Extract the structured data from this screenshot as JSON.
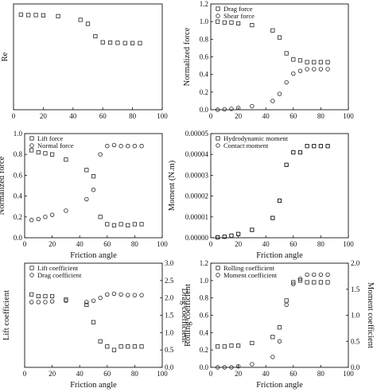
{
  "figure": {
    "colors": {
      "marker": "#222222",
      "axis": "#111111",
      "background": "#ffffff"
    }
  },
  "chart_data": [
    {
      "type": "scatter",
      "title": "",
      "xlabel": "",
      "ylabel": "Re",
      "xlim": [
        0,
        100
      ],
      "ylim": [
        0,
        400
      ],
      "xticks": [
        "0",
        "20",
        "40",
        "60",
        "80",
        "100"
      ],
      "yticks": [],
      "grid": false,
      "legend": null,
      "series": [
        {
          "marker": "square",
          "axis": "left",
          "x": [
            5,
            10,
            15,
            20,
            30,
            45,
            50,
            55,
            60,
            65,
            70,
            75,
            80,
            85
          ],
          "y": [
            360,
            358,
            358,
            357,
            354,
            340,
            325,
            278,
            255,
            254,
            253,
            252,
            252,
            252
          ]
        }
      ]
    },
    {
      "type": "scatter",
      "title": "",
      "xlabel": "",
      "ylabel": "Normalized force",
      "xlim": [
        0,
        100
      ],
      "ylim": [
        0,
        1.2
      ],
      "xticks": [
        "0",
        "20",
        "40",
        "60",
        "80",
        "100"
      ],
      "yticks": [
        "0.0",
        "0.2",
        "0.4",
        "0.6",
        "0.8",
        "1.0",
        "1.2"
      ],
      "grid": false,
      "legend": "top-left",
      "series": [
        {
          "name": "Drag force",
          "marker": "square",
          "axis": "left",
          "x": [
            5,
            10,
            15,
            20,
            30,
            45,
            50,
            55,
            60,
            65,
            70,
            75,
            80,
            85
          ],
          "y": [
            1.0,
            0.99,
            0.99,
            0.98,
            0.96,
            0.9,
            0.82,
            0.64,
            0.57,
            0.56,
            0.54,
            0.54,
            0.54,
            0.54
          ]
        },
        {
          "name": "Shear force",
          "marker": "circle",
          "axis": "left",
          "x": [
            5,
            10,
            15,
            20,
            30,
            45,
            50,
            55,
            60,
            65,
            70,
            75,
            80,
            85
          ],
          "y": [
            0.0,
            0.005,
            0.01,
            0.02,
            0.04,
            0.1,
            0.18,
            0.31,
            0.41,
            0.44,
            0.46,
            0.46,
            0.46,
            0.46
          ]
        }
      ]
    },
    {
      "type": "scatter",
      "title": "",
      "xlabel": "Friction angle",
      "ylabel": "Normalized force",
      "xlim": [
        0,
        100
      ],
      "ylim": [
        0.0,
        1.0
      ],
      "xticks": [
        "0",
        "20",
        "40",
        "60",
        "80",
        "100"
      ],
      "yticks": [
        "0.0",
        "0.2",
        "0.4",
        "0.6",
        "0.8",
        "1.0"
      ],
      "grid": false,
      "legend": "top-left",
      "series": [
        {
          "name": "Lift force",
          "marker": "square",
          "axis": "left",
          "x": [
            5,
            10,
            15,
            20,
            30,
            45,
            50,
            55,
            60,
            65,
            70,
            75,
            80,
            85
          ],
          "y": [
            0.84,
            0.82,
            0.81,
            0.8,
            0.75,
            0.65,
            0.59,
            0.2,
            0.13,
            0.12,
            0.13,
            0.12,
            0.13,
            0.13
          ]
        },
        {
          "name": "Normal force",
          "marker": "circle",
          "axis": "left",
          "x": [
            5,
            10,
            15,
            20,
            30,
            45,
            50,
            55,
            60,
            65,
            70,
            75,
            80,
            85
          ],
          "y": [
            0.17,
            0.18,
            0.2,
            0.22,
            0.26,
            0.37,
            0.46,
            0.8,
            0.88,
            0.89,
            0.88,
            0.88,
            0.88,
            0.88
          ]
        }
      ]
    },
    {
      "type": "scatter",
      "title": "",
      "xlabel": "Friction angle",
      "ylabel": "Moment (N.m)",
      "xlim": [
        0,
        100
      ],
      "ylim": [
        0,
        5e-05
      ],
      "xticks": [
        "0",
        "20",
        "40",
        "60",
        "80",
        "100"
      ],
      "yticks": [
        "0.00000",
        "0.00001",
        "0.00002",
        "0.00003",
        "0.00004",
        "0.00005"
      ],
      "grid": false,
      "legend": "top-left",
      "series": [
        {
          "name": "Hydrodynamic moment",
          "marker": "square",
          "axis": "left",
          "x": [
            5,
            10,
            15,
            20,
            30,
            45,
            50,
            55,
            60,
            65,
            70,
            75,
            80,
            85
          ],
          "y": [
            2e-07,
            5e-07,
            1e-06,
            1.8e-06,
            3.8e-06,
            9.5e-06,
            1.78e-05,
            3.5e-05,
            4.1e-05,
            4.1e-05,
            4.4e-05,
            4.4e-05,
            4.4e-05,
            4.4e-05
          ]
        },
        {
          "name": "Contact moment",
          "marker": "circle",
          "axis": "left",
          "x": [
            5,
            10,
            15,
            20,
            30,
            45,
            50,
            55,
            60,
            65,
            70,
            75,
            80,
            85
          ],
          "y": [
            2e-07,
            5e-07,
            1e-06,
            1.8e-06,
            3.8e-06,
            9.5e-06,
            1.78e-05,
            3.5e-05,
            4.1e-05,
            4.1e-05,
            4.4e-05,
            4.4e-05,
            4.4e-05,
            4.4e-05
          ]
        }
      ]
    },
    {
      "type": "scatter",
      "title": "",
      "xlabel": "Friction angle",
      "ylabel": "Lift coefficient",
      "ylabel_right": "Drag coefficient",
      "xlim": [
        0,
        100
      ],
      "ylim": [
        0,
        0.6
      ],
      "ylim_right": [
        0,
        3.0
      ],
      "xticks": [
        "0",
        "20",
        "40",
        "60",
        "80",
        "100"
      ],
      "yticks": [],
      "yticks_right": [
        "0.0",
        "0.5",
        "1.0",
        "1.5",
        "2.0",
        "2.5",
        "3.0"
      ],
      "grid": false,
      "legend": "top-left",
      "series": [
        {
          "name": "Lift coefficient",
          "marker": "square",
          "axis": "left",
          "x": [
            5,
            10,
            15,
            20,
            30,
            45,
            50,
            55,
            60,
            65,
            70,
            75,
            80,
            85
          ],
          "y": [
            0.42,
            0.41,
            0.41,
            0.41,
            0.39,
            0.36,
            0.26,
            0.15,
            0.12,
            0.1,
            0.12,
            0.12,
            0.12,
            0.12
          ]
        },
        {
          "name": "Drag coefficient",
          "marker": "circle",
          "axis": "right",
          "x": [
            5,
            10,
            15,
            20,
            30,
            45,
            50,
            55,
            60,
            65,
            70,
            75,
            80,
            85
          ],
          "y": [
            1.88,
            1.88,
            1.88,
            1.9,
            1.92,
            1.88,
            1.92,
            2.0,
            2.1,
            2.12,
            2.1,
            2.08,
            2.08,
            2.08
          ]
        }
      ]
    },
    {
      "type": "scatter",
      "title": "",
      "xlabel": "Friction angle",
      "ylabel": "Rolling coefficient",
      "ylabel_right": "Moment coefficient",
      "xlim": [
        0,
        100
      ],
      "ylim": [
        0,
        1.2
      ],
      "ylim_right": [
        0,
        2.0
      ],
      "xticks": [
        "0",
        "20",
        "40",
        "60",
        "80",
        "100"
      ],
      "yticks": [
        "0.0",
        "0.2",
        "0.4",
        "0.6",
        "0.8",
        "1.0",
        "1.2"
      ],
      "yticks_right": [
        "0.0",
        "0.5",
        "1.0",
        "1.5",
        "2.0"
      ],
      "grid": false,
      "legend": "top-left",
      "series": [
        {
          "name": "Rolling coefficient",
          "marker": "square",
          "axis": "left",
          "x": [
            5,
            10,
            15,
            20,
            30,
            45,
            50,
            55,
            60,
            65,
            70,
            75,
            80,
            85
          ],
          "y": [
            0.24,
            0.24,
            0.25,
            0.25,
            0.28,
            0.35,
            0.46,
            0.77,
            0.98,
            1.0,
            0.98,
            0.98,
            0.98,
            0.98
          ]
        },
        {
          "name": "Moment coefficient",
          "marker": "circle",
          "axis": "right",
          "x": [
            5,
            10,
            15,
            20,
            30,
            45,
            50,
            55,
            60,
            65,
            70,
            75,
            80,
            85
          ],
          "y": [
            0.0,
            0.0,
            0.0,
            0.02,
            0.06,
            0.2,
            0.5,
            1.2,
            1.6,
            1.7,
            1.78,
            1.78,
            1.78,
            1.78
          ]
        }
      ]
    }
  ]
}
